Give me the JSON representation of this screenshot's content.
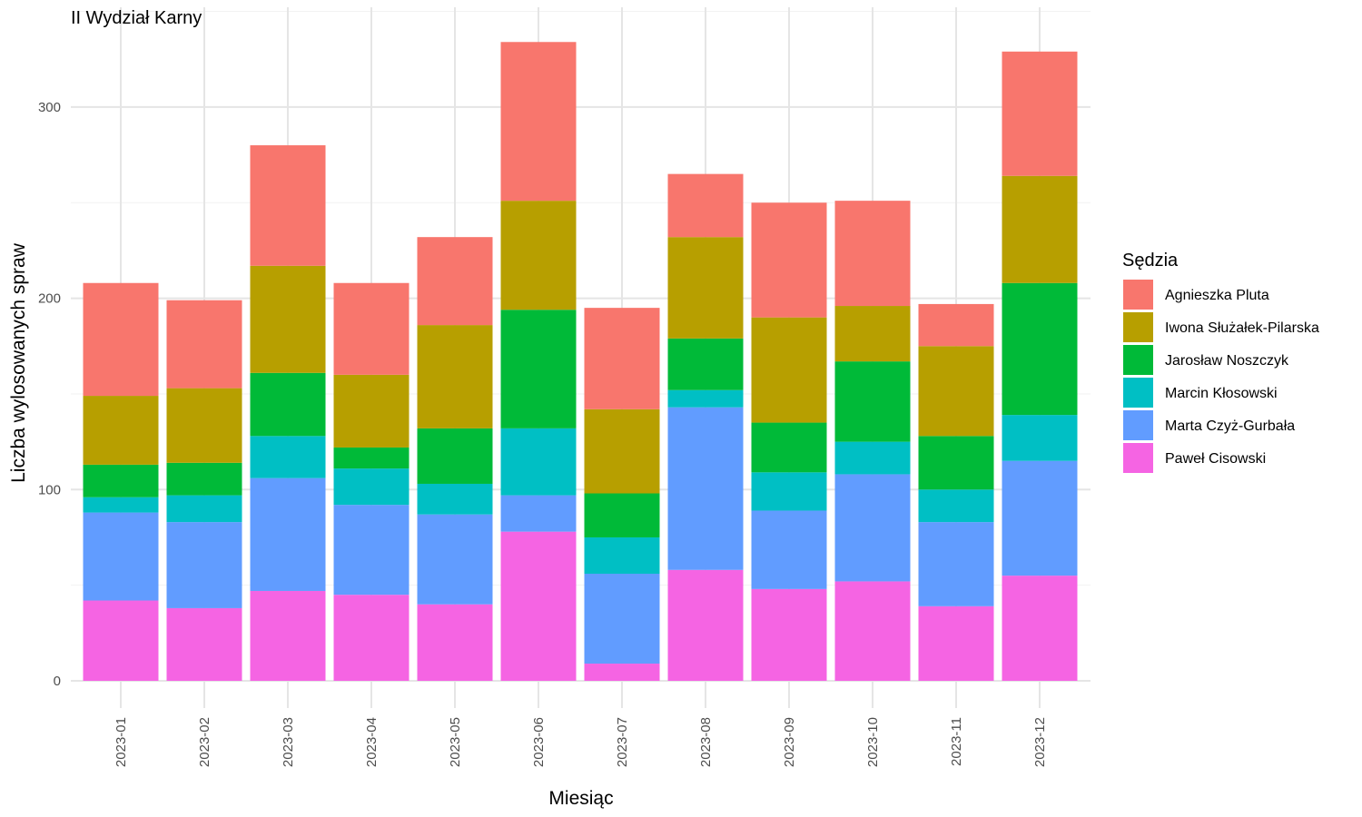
{
  "chart_data": {
    "type": "bar",
    "stacked": true,
    "title": "II Wydział Karny",
    "xlabel": "Miesiąc",
    "ylabel": "Liczba wylosowanych spraw",
    "ylim": [
      0,
      340
    ],
    "y_ticks": [
      0,
      100,
      200,
      300
    ],
    "grid": true,
    "legend_title": "Sędzia",
    "legend_position": "right",
    "categories": [
      "2023-01",
      "2023-02",
      "2023-03",
      "2023-04",
      "2023-05",
      "2023-06",
      "2023-07",
      "2023-08",
      "2023-09",
      "2023-10",
      "2023-11",
      "2023-12"
    ],
    "series": [
      {
        "name": "Paweł Cisowski",
        "color": "#F564E3",
        "values": [
          42,
          38,
          47,
          45,
          40,
          78,
          9,
          58,
          48,
          52,
          39,
          55
        ]
      },
      {
        "name": "Marta Czyż-Gurbała",
        "color": "#619CFF",
        "values": [
          46,
          45,
          59,
          47,
          47,
          19,
          47,
          85,
          41,
          56,
          44,
          60
        ]
      },
      {
        "name": "Marcin Kłosowski",
        "color": "#00BFC4",
        "values": [
          8,
          14,
          22,
          19,
          16,
          35,
          19,
          9,
          20,
          17,
          17,
          24
        ]
      },
      {
        "name": "Jarosław Noszczyk",
        "color": "#00BA38",
        "values": [
          17,
          17,
          33,
          11,
          29,
          62,
          23,
          27,
          26,
          42,
          28,
          69
        ]
      },
      {
        "name": "Iwona Służałek-Pilarska",
        "color": "#B79F00",
        "values": [
          36,
          39,
          56,
          38,
          54,
          57,
          44,
          53,
          55,
          29,
          47,
          56
        ]
      },
      {
        "name": "Agnieszka Pluta",
        "color": "#F8766D",
        "values": [
          59,
          46,
          63,
          48,
          46,
          83,
          53,
          33,
          60,
          55,
          22,
          65
        ]
      }
    ],
    "legend_order": [
      "Agnieszka Pluta",
      "Iwona Służałek-Pilarska",
      "Jarosław Noszczyk",
      "Marcin Kłosowski",
      "Marta Czyż-Gurbała",
      "Paweł Cisowski"
    ]
  }
}
